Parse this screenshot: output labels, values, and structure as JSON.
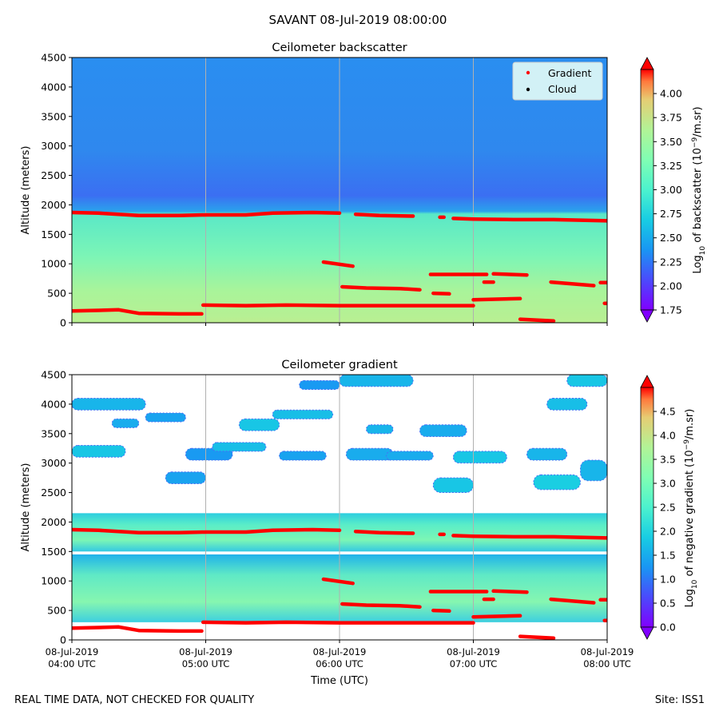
{
  "figure": {
    "title": "SAVANT 08-Jul-2019 08:00:00",
    "footer_left": "REAL TIME DATA, NOT CHECKED FOR QUALITY",
    "footer_right": "Site: ISS1"
  },
  "colors": {
    "gradient_marker": "#ff0000",
    "cloud_marker": "#000000",
    "grid": "#b0b0b0"
  },
  "chart_data": [
    {
      "type": "heatmap",
      "title": "Ceilometer backscatter",
      "ylabel": "Altitude (meters)",
      "xlabel": "",
      "ylim": [
        0,
        4500
      ],
      "yticks": [
        0,
        500,
        1000,
        1500,
        2000,
        2500,
        3000,
        3500,
        4000,
        4500
      ],
      "x_range_hours": [
        4,
        8
      ],
      "xticks": [
        {
          "line1": "08-Jul-2019",
          "line2": "04:00 UTC"
        },
        {
          "line1": "08-Jul-2019",
          "line2": "05:00 UTC"
        },
        {
          "line1": "08-Jul-2019",
          "line2": "06:00 UTC"
        },
        {
          "line1": "08-Jul-2019",
          "line2": "07:00 UTC"
        },
        {
          "line1": "08-Jul-2019",
          "line2": "08:00 UTC"
        }
      ],
      "show_xtick_labels": false,
      "colorbar": {
        "label_main": "Log",
        "label_sub": "10",
        "label_rest": " of backscatter (10",
        "label_sup": "−9",
        "label_end": "/m.sr)",
        "range": [
          1.75,
          4.25
        ],
        "ticks": [
          "1.75",
          "2.00",
          "2.25",
          "2.50",
          "2.75",
          "3.00",
          "3.25",
          "3.50",
          "3.75",
          "4.00"
        ]
      },
      "legend": {
        "position": "top-right",
        "entries": [
          {
            "label": "Gradient",
            "color": "#ff0000"
          },
          {
            "label": "Cloud",
            "color": "#000000"
          }
        ]
      },
      "field": {
        "upper_value": 2.35,
        "boundary_altitude": 1850,
        "lower_value": 2.9,
        "surface_peak": 3.2
      },
      "series": [
        {
          "name": "Gradient",
          "segments": [
            {
              "t": [
                4.0,
                4.2,
                4.5,
                4.8,
                5.0,
                5.3,
                5.5,
                5.8,
                6.0
              ],
              "alt": [
                1870,
                1860,
                1820,
                1820,
                1830,
                1830,
                1860,
                1870,
                1860
              ]
            },
            {
              "t": [
                6.12,
                6.3,
                6.55
              ],
              "alt": [
                1840,
                1820,
                1810
              ]
            },
            {
              "t": [
                6.75,
                6.78
              ],
              "alt": [
                1790,
                1790
              ]
            },
            {
              "t": [
                6.85,
                7.0,
                7.3,
                7.6,
                8.0
              ],
              "alt": [
                1770,
                1760,
                1750,
                1750,
                1730
              ]
            },
            {
              "t": [
                5.88,
                6.1
              ],
              "alt": [
                1030,
                960
              ]
            },
            {
              "t": [
                6.02,
                6.2,
                6.45,
                6.6
              ],
              "alt": [
                610,
                590,
                580,
                560
              ]
            },
            {
              "t": [
                6.7,
                6.82
              ],
              "alt": [
                500,
                490
              ]
            },
            {
              "t": [
                6.68,
                7.1
              ],
              "alt": [
                820,
                820
              ]
            },
            {
              "t": [
                7.08,
                7.15
              ],
              "alt": [
                690,
                690
              ]
            },
            {
              "t": [
                7.15,
                7.4
              ],
              "alt": [
                830,
                810
              ]
            },
            {
              "t": [
                7.58,
                7.9
              ],
              "alt": [
                690,
                630
              ]
            },
            {
              "t": [
                7.95,
                8.0
              ],
              "alt": [
                680,
                680
              ]
            },
            {
              "t": [
                4.0,
                4.2,
                4.35,
                4.5,
                4.8,
                4.97
              ],
              "alt": [
                200,
                210,
                220,
                160,
                150,
                150
              ]
            },
            {
              "t": [
                4.98,
                5.3,
                5.6,
                6.0,
                6.5,
                7.0
              ],
              "alt": [
                300,
                290,
                300,
                290,
                290,
                290
              ]
            },
            {
              "t": [
                7.0,
                7.35
              ],
              "alt": [
                390,
                410
              ]
            },
            {
              "t": [
                7.35,
                7.6
              ],
              "alt": [
                60,
                30
              ]
            },
            {
              "t": [
                7.98,
                8.0
              ],
              "alt": [
                330,
                330
              ]
            }
          ]
        },
        {
          "name": "Cloud",
          "segments": []
        }
      ]
    },
    {
      "type": "heatmap",
      "title": "Ceilometer gradient",
      "ylabel": "Altitude (meters)",
      "xlabel": "Time (UTC)",
      "ylim": [
        0,
        4500
      ],
      "yticks": [
        0,
        500,
        1000,
        1500,
        2000,
        2500,
        3000,
        3500,
        4000,
        4500
      ],
      "x_range_hours": [
        4,
        8
      ],
      "xticks": [
        {
          "line1": "08-Jul-2019",
          "line2": "04:00 UTC"
        },
        {
          "line1": "08-Jul-2019",
          "line2": "05:00 UTC"
        },
        {
          "line1": "08-Jul-2019",
          "line2": "06:00 UTC"
        },
        {
          "line1": "08-Jul-2019",
          "line2": "07:00 UTC"
        },
        {
          "line1": "08-Jul-2019",
          "line2": "08:00 UTC"
        }
      ],
      "show_xtick_labels": true,
      "colorbar": {
        "label_main": "Log",
        "label_sub": "10",
        "label_rest": " of negative gradient (10",
        "label_sup": "−9",
        "label_end": "/m.sr)",
        "range": [
          0,
          5
        ],
        "ticks": [
          "0.0",
          "0.5",
          "1.0",
          "1.5",
          "2.0",
          "2.5",
          "3.0",
          "3.5",
          "4.0",
          "4.5"
        ]
      },
      "bands": [
        {
          "alt_range": [
            1500,
            2150
          ],
          "value": 2.0
        },
        {
          "alt_range": [
            300,
            1450
          ],
          "value": 1.9
        }
      ],
      "upper_patches": [
        {
          "t": [
            4.0,
            4.55
          ],
          "alt": [
            3900,
            4100
          ],
          "value": 1.6
        },
        {
          "t": [
            4.3,
            4.5
          ],
          "alt": [
            3600,
            3750
          ],
          "value": 1.5
        },
        {
          "t": [
            4.0,
            4.4
          ],
          "alt": [
            3100,
            3300
          ],
          "value": 1.8
        },
        {
          "t": [
            4.55,
            4.85
          ],
          "alt": [
            3700,
            3850
          ],
          "value": 1.4
        },
        {
          "t": [
            4.7,
            5.0
          ],
          "alt": [
            2650,
            2850
          ],
          "value": 1.4
        },
        {
          "t": [
            4.85,
            5.2
          ],
          "alt": [
            3050,
            3250
          ],
          "value": 1.3
        },
        {
          "t": [
            5.05,
            5.45
          ],
          "alt": [
            3200,
            3350
          ],
          "value": 1.7
        },
        {
          "t": [
            5.25,
            5.55
          ],
          "alt": [
            3550,
            3750
          ],
          "value": 1.8
        },
        {
          "t": [
            5.5,
            5.95
          ],
          "alt": [
            3750,
            3900
          ],
          "value": 1.7
        },
        {
          "t": [
            5.55,
            5.9
          ],
          "alt": [
            3050,
            3200
          ],
          "value": 1.4
        },
        {
          "t": [
            5.7,
            6.0
          ],
          "alt": [
            4250,
            4400
          ],
          "value": 1.3
        },
        {
          "t": [
            6.0,
            6.55
          ],
          "alt": [
            4300,
            4500
          ],
          "value": 1.6
        },
        {
          "t": [
            6.2,
            6.4
          ],
          "alt": [
            3500,
            3650
          ],
          "value": 1.6
        },
        {
          "t": [
            6.05,
            6.4
          ],
          "alt": [
            3050,
            3250
          ],
          "value": 1.5
        },
        {
          "t": [
            6.35,
            6.7
          ],
          "alt": [
            3050,
            3200
          ],
          "value": 1.5
        },
        {
          "t": [
            6.6,
            6.95
          ],
          "alt": [
            3450,
            3650
          ],
          "value": 1.5
        },
        {
          "t": [
            6.7,
            7.0
          ],
          "alt": [
            2500,
            2750
          ],
          "value": 1.8
        },
        {
          "t": [
            6.85,
            7.25
          ],
          "alt": [
            3000,
            3200
          ],
          "value": 1.8
        },
        {
          "t": [
            7.4,
            7.7
          ],
          "alt": [
            3050,
            3250
          ],
          "value": 1.6
        },
        {
          "t": [
            7.55,
            7.85
          ],
          "alt": [
            3900,
            4100
          ],
          "value": 1.7
        },
        {
          "t": [
            7.45,
            7.8
          ],
          "alt": [
            2550,
            2800
          ],
          "value": 1.9
        },
        {
          "t": [
            7.7,
            8.0
          ],
          "alt": [
            4300,
            4500
          ],
          "value": 1.8
        },
        {
          "t": [
            7.8,
            8.0
          ],
          "alt": [
            2700,
            3050
          ],
          "value": 1.6
        }
      ],
      "series": [
        {
          "name": "Gradient",
          "segments": [
            {
              "t": [
                4.0,
                4.2,
                4.5,
                4.8,
                5.0,
                5.3,
                5.5,
                5.8,
                6.0
              ],
              "alt": [
                1870,
                1860,
                1820,
                1820,
                1830,
                1830,
                1860,
                1870,
                1860
              ]
            },
            {
              "t": [
                6.12,
                6.3,
                6.55
              ],
              "alt": [
                1840,
                1820,
                1810
              ]
            },
            {
              "t": [
                6.75,
                6.78
              ],
              "alt": [
                1790,
                1790
              ]
            },
            {
              "t": [
                6.85,
                7.0,
                7.3,
                7.6,
                8.0
              ],
              "alt": [
                1770,
                1760,
                1750,
                1750,
                1730
              ]
            },
            {
              "t": [
                5.88,
                6.1
              ],
              "alt": [
                1030,
                960
              ]
            },
            {
              "t": [
                6.02,
                6.2,
                6.45,
                6.6
              ],
              "alt": [
                610,
                590,
                580,
                560
              ]
            },
            {
              "t": [
                6.7,
                6.82
              ],
              "alt": [
                500,
                490
              ]
            },
            {
              "t": [
                6.68,
                7.1
              ],
              "alt": [
                820,
                820
              ]
            },
            {
              "t": [
                7.08,
                7.15
              ],
              "alt": [
                690,
                690
              ]
            },
            {
              "t": [
                7.15,
                7.4
              ],
              "alt": [
                830,
                810
              ]
            },
            {
              "t": [
                7.58,
                7.9
              ],
              "alt": [
                690,
                630
              ]
            },
            {
              "t": [
                7.95,
                8.0
              ],
              "alt": [
                680,
                680
              ]
            },
            {
              "t": [
                4.0,
                4.2,
                4.35,
                4.5,
                4.8,
                4.97
              ],
              "alt": [
                200,
                210,
                220,
                160,
                150,
                150
              ]
            },
            {
              "t": [
                4.98,
                5.3,
                5.6,
                6.0,
                6.5,
                7.0
              ],
              "alt": [
                300,
                290,
                300,
                290,
                290,
                290
              ]
            },
            {
              "t": [
                7.0,
                7.35
              ],
              "alt": [
                390,
                410
              ]
            },
            {
              "t": [
                7.35,
                7.6
              ],
              "alt": [
                60,
                30
              ]
            },
            {
              "t": [
                7.98,
                8.0
              ],
              "alt": [
                330,
                330
              ]
            }
          ]
        }
      ]
    }
  ]
}
